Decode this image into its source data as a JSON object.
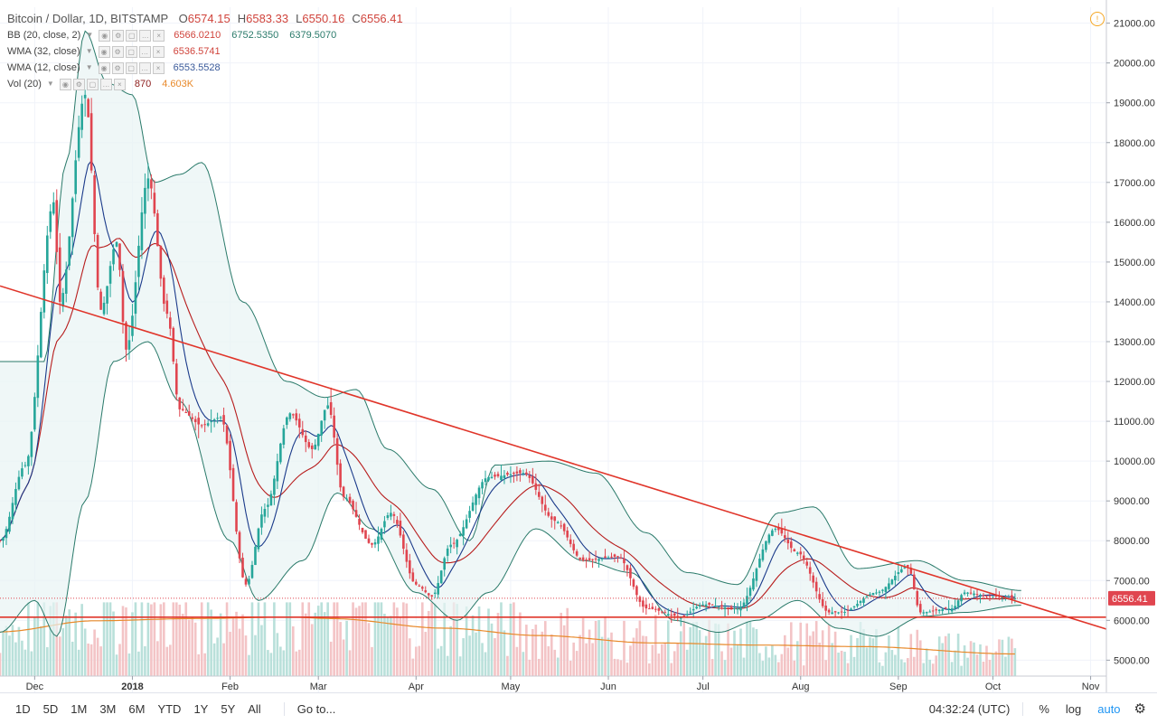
{
  "header": {
    "symbol": "Bitcoin / Dollar, 1D, BITSTAMP",
    "ohlc": [
      {
        "label": "O",
        "value": "6574.15"
      },
      {
        "label": "H",
        "value": "6583.33"
      },
      {
        "label": "L",
        "value": "6550.16"
      },
      {
        "label": "C",
        "value": "6556.41"
      }
    ]
  },
  "indicators": [
    {
      "name": "BB (20, close, 2)",
      "values": [
        "6566.0210",
        "6752.5350",
        "6379.5070"
      ],
      "colors": [
        "#d0443c",
        "#2a7a6a",
        "#2a7a6a"
      ]
    },
    {
      "name": "WMA (32, close)",
      "values": [
        "6536.5741"
      ],
      "colors": [
        "#d0443c"
      ]
    },
    {
      "name": "WMA (12, close)",
      "values": [
        "6553.5528"
      ],
      "colors": [
        "#3a5a9a"
      ]
    },
    {
      "name": "Vol (20)",
      "values": [
        "870",
        "4.603K"
      ],
      "colors": [
        "#8b1a1a",
        "#e8892a"
      ]
    }
  ],
  "toolbar": {
    "timeframes": [
      "1D",
      "5D",
      "1M",
      "3M",
      "6M",
      "YTD",
      "1Y",
      "5Y",
      "All"
    ],
    "goto": "Go to...",
    "clock": "04:32:24 (UTC)",
    "percent": "%",
    "log": "log",
    "auto": "auto"
  },
  "colors": {
    "up": "#26a69a",
    "down": "#e0454f",
    "band_line": "#2a7a6a",
    "band_fill": "#e8f4f4",
    "wma32": "#b71c1c",
    "wma12": "#1a3a8a",
    "trendline": "#e0352a",
    "vol_ma": "#e8892a",
    "price_tag": "#e0454f",
    "alert": "#f5a623"
  },
  "chart_data": {
    "type": "candlestick",
    "title": "Bitcoin / Dollar, 1D, BITSTAMP",
    "last_price": 6556.41,
    "ylim": [
      4600,
      21400
    ],
    "y_ticks": [
      5000,
      6000,
      7000,
      8000,
      9000,
      10000,
      11000,
      12000,
      13000,
      14000,
      15000,
      16000,
      17000,
      18000,
      19000,
      20000,
      21000
    ],
    "y_tick_labels": [
      "5000.00",
      "6000.00",
      "7000.00",
      "8000.00",
      "9000.00",
      "10000.00",
      "11000.00",
      "12000.00",
      "13000.00",
      "14000.00",
      "15000.00",
      "16000.00",
      "17000.00",
      "18000.00",
      "19000.00",
      "20000.00",
      "21000.00"
    ],
    "x_range": [
      "2017-11-20",
      "2018-11-06"
    ],
    "x_ticks": [
      {
        "date": "2017-12-01",
        "label": "Dec"
      },
      {
        "date": "2018-01-01",
        "label": "2018"
      },
      {
        "date": "2018-02-01",
        "label": "Feb"
      },
      {
        "date": "2018-03-01",
        "label": "Mar"
      },
      {
        "date": "2018-04-01",
        "label": "Apr"
      },
      {
        "date": "2018-05-01",
        "label": "May"
      },
      {
        "date": "2018-06-01",
        "label": "Jun"
      },
      {
        "date": "2018-07-01",
        "label": "Jul"
      },
      {
        "date": "2018-08-01",
        "label": "Aug"
      },
      {
        "date": "2018-09-01",
        "label": "Sep"
      },
      {
        "date": "2018-10-01",
        "label": "Oct"
      },
      {
        "date": "2018-11-01",
        "label": "Nov"
      }
    ],
    "close_anchors": [
      [
        "2017-11-20",
        8000
      ],
      [
        "2017-11-28",
        9900
      ],
      [
        "2017-12-07",
        16500
      ],
      [
        "2017-12-09",
        14000
      ],
      [
        "2017-12-17",
        19200
      ],
      [
        "2017-12-22",
        13800
      ],
      [
        "2017-12-27",
        15500
      ],
      [
        "2017-12-30",
        12800
      ],
      [
        "2018-01-06",
        17100
      ],
      [
        "2018-01-12",
        13700
      ],
      [
        "2018-01-16",
        11300
      ],
      [
        "2018-01-23",
        10900
      ],
      [
        "2018-01-29",
        11100
      ],
      [
        "2018-02-06",
        6900
      ],
      [
        "2018-02-12",
        8800
      ],
      [
        "2018-02-20",
        11200
      ],
      [
        "2018-02-27",
        10300
      ],
      [
        "2018-03-04",
        11400
      ],
      [
        "2018-03-09",
        9100
      ],
      [
        "2018-03-18",
        7900
      ],
      [
        "2018-03-24",
        8700
      ],
      [
        "2018-04-01",
        6900
      ],
      [
        "2018-04-06",
        6600
      ],
      [
        "2018-04-12",
        7900
      ],
      [
        "2018-04-24",
        9600
      ],
      [
        "2018-05-05",
        9700
      ],
      [
        "2018-05-15",
        8500
      ],
      [
        "2018-05-24",
        7500
      ],
      [
        "2018-06-04",
        7600
      ],
      [
        "2018-06-13",
        6300
      ],
      [
        "2018-06-24",
        6100
      ],
      [
        "2018-07-01",
        6400
      ],
      [
        "2018-07-12",
        6300
      ],
      [
        "2018-07-24",
        8300
      ],
      [
        "2018-07-31",
        7700
      ],
      [
        "2018-08-10",
        6200
      ],
      [
        "2018-08-14",
        6200
      ],
      [
        "2018-08-25",
        6700
      ],
      [
        "2018-09-04",
        7350
      ],
      [
        "2018-09-08",
        6200
      ],
      [
        "2018-09-18",
        6300
      ],
      [
        "2018-09-22",
        6700
      ],
      [
        "2018-10-01",
        6600
      ],
      [
        "2018-10-08",
        6556
      ]
    ],
    "upper_band_anchors": [
      [
        "2017-12-04",
        12500
      ],
      [
        "2017-12-11",
        17500
      ],
      [
        "2017-12-17",
        20800
      ],
      [
        "2017-12-24",
        19500
      ],
      [
        "2018-01-01",
        19200
      ],
      [
        "2018-01-08",
        17000
      ],
      [
        "2018-01-16",
        17200
      ],
      [
        "2018-01-23",
        17500
      ],
      [
        "2018-02-05",
        14000
      ],
      [
        "2018-02-19",
        12000
      ],
      [
        "2018-03-03",
        11600
      ],
      [
        "2018-03-13",
        11800
      ],
      [
        "2018-03-23",
        10300
      ],
      [
        "2018-04-06",
        9300
      ],
      [
        "2018-04-18",
        8000
      ],
      [
        "2018-04-26",
        9900
      ],
      [
        "2018-05-13",
        10000
      ],
      [
        "2018-05-28",
        9700
      ],
      [
        "2018-06-13",
        8200
      ],
      [
        "2018-06-26",
        7200
      ],
      [
        "2018-07-12",
        6900
      ],
      [
        "2018-07-25",
        8700
      ],
      [
        "2018-08-05",
        8850
      ],
      [
        "2018-08-19",
        7300
      ],
      [
        "2018-09-07",
        7500
      ],
      [
        "2018-09-22",
        7000
      ],
      [
        "2018-10-10",
        6750
      ]
    ],
    "lower_band_anchors": [
      [
        "2017-11-20",
        5700
      ],
      [
        "2017-12-01",
        6500
      ],
      [
        "2017-12-08",
        5600
      ],
      [
        "2017-12-17",
        9000
      ],
      [
        "2017-12-26",
        12500
      ],
      [
        "2018-01-06",
        13000
      ],
      [
        "2018-01-16",
        11500
      ],
      [
        "2018-02-01",
        8000
      ],
      [
        "2018-02-10",
        6500
      ],
      [
        "2018-02-24",
        7500
      ],
      [
        "2018-03-07",
        9200
      ],
      [
        "2018-03-18",
        8300
      ],
      [
        "2018-04-01",
        6700
      ],
      [
        "2018-04-14",
        6000
      ],
      [
        "2018-04-24",
        6700
      ],
      [
        "2018-05-09",
        8300
      ],
      [
        "2018-05-24",
        7500
      ],
      [
        "2018-06-08",
        7200
      ],
      [
        "2018-06-22",
        6000
      ],
      [
        "2018-07-06",
        5700
      ],
      [
        "2018-07-18",
        6000
      ],
      [
        "2018-07-31",
        6500
      ],
      [
        "2018-08-13",
        5800
      ],
      [
        "2018-08-25",
        5600
      ],
      [
        "2018-09-09",
        6100
      ],
      [
        "2018-09-22",
        6200
      ],
      [
        "2018-10-10",
        6380
      ]
    ],
    "trendline": {
      "from": [
        "2017-11-20",
        14400
      ],
      "to": [
        "2018-11-06",
        5780
      ]
    },
    "support_line": 6080,
    "volume_ma_anchors": [
      [
        "2017-11-20",
        60
      ],
      [
        "2017-12-20",
        75
      ],
      [
        "2018-01-20",
        78
      ],
      [
        "2018-02-20",
        80
      ],
      [
        "2018-03-05",
        78
      ],
      [
        "2018-04-10",
        65
      ],
      [
        "2018-05-10",
        55
      ],
      [
        "2018-06-15",
        45
      ],
      [
        "2018-07-20",
        42
      ],
      [
        "2018-08-20",
        40
      ],
      [
        "2018-10-08",
        30
      ]
    ]
  }
}
